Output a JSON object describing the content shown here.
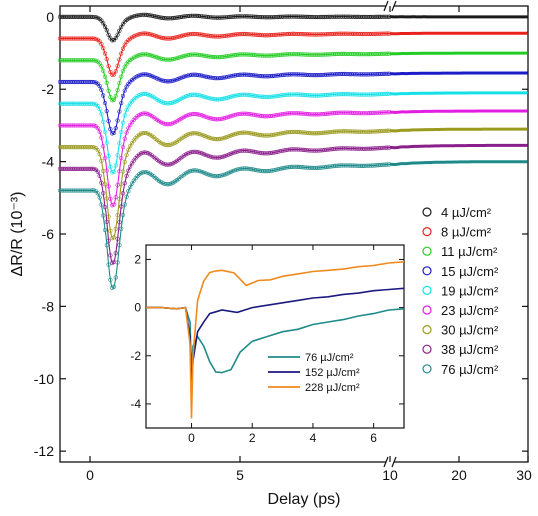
{
  "chart_data": [
    {
      "type": "line",
      "xlabel": "Delay (ps)",
      "ylabel": "ΔR/R (10⁻³)",
      "ylim": [
        -12.3,
        0.3
      ],
      "x_segments": [
        {
          "range": [
            -1,
            10
          ],
          "ticks": [
            0,
            5,
            10
          ],
          "scale": "linear"
        },
        {
          "range": [
            10,
            30
          ],
          "ticks": [
            20,
            30
          ],
          "scale": "linear"
        }
      ],
      "x_tick_labels": [
        "0",
        "5",
        "10",
        "20",
        "30"
      ],
      "y_ticks": [
        0,
        -2,
        -4,
        -6,
        -8,
        -10,
        -12
      ],
      "y_tick_labels": [
        "0",
        "-2",
        "-4",
        "-6",
        "-8",
        "-10",
        "-12"
      ],
      "axis_break": true,
      "legend_position": "right",
      "series": [
        {
          "name": "4 µJ/cm²",
          "fluence": 4,
          "color": "#1a1a1a",
          "offset": 0,
          "amp": 0.6,
          "end": 0.0
        },
        {
          "name": "8 µJ/cm²",
          "fluence": 8,
          "color": "#e8221b",
          "offset": -0.6,
          "amp": 0.95,
          "end": -0.45
        },
        {
          "name": "11 µJ/cm²",
          "fluence": 11,
          "color": "#22cc22",
          "offset": -1.2,
          "amp": 1.05,
          "end": -1.0
        },
        {
          "name": "15 µJ/cm²",
          "fluence": 15,
          "color": "#1c1cc8",
          "offset": -1.8,
          "amp": 1.35,
          "end": -1.55
        },
        {
          "name": "19 µJ/cm²",
          "fluence": 19,
          "color": "#14e0e6",
          "offset": -2.4,
          "amp": 1.8,
          "end": -2.1
        },
        {
          "name": "23 µJ/cm²",
          "fluence": 23,
          "color": "#e31ee3",
          "offset": -3.0,
          "amp": 2.1,
          "end": -2.6
        },
        {
          "name": "30 µJ/cm²",
          "fluence": 30,
          "color": "#9a9a1e",
          "offset": -3.6,
          "amp": 2.4,
          "end": -3.1
        },
        {
          "name": "38 µJ/cm²",
          "fluence": 38,
          "color": "#8a1e8a",
          "offset": -4.2,
          "amp": 2.5,
          "end": -3.55
        },
        {
          "name": "76 µJ/cm²",
          "fluence": 76,
          "color": "#1e8a8a",
          "offset": -4.8,
          "amp": 2.6,
          "end": -4.0
        }
      ]
    },
    {
      "type": "line",
      "inset": true,
      "xlim": [
        -1.5,
        7
      ],
      "ylim": [
        -5,
        2.6
      ],
      "x_ticks": [
        0,
        2,
        4,
        6
      ],
      "y_ticks": [
        2,
        0,
        -2,
        -4
      ],
      "series": [
        {
          "name": "76 µJ/cm²",
          "color": "#1e8a8a",
          "points": [
            [
              -1.5,
              0
            ],
            [
              -1,
              0
            ],
            [
              -0.5,
              -0.05
            ],
            [
              -0.2,
              0
            ],
            [
              -0.05,
              -0.6
            ],
            [
              0,
              -2.8
            ],
            [
              0.05,
              -1.6
            ],
            [
              0.2,
              -1.2
            ],
            [
              0.4,
              -1.6
            ],
            [
              0.6,
              -2.2
            ],
            [
              0.8,
              -2.6
            ],
            [
              1.0,
              -2.7
            ],
            [
              1.3,
              -2.5
            ],
            [
              1.6,
              -1.8
            ],
            [
              2.0,
              -1.4
            ],
            [
              2.5,
              -1.2
            ],
            [
              3.0,
              -1.0
            ],
            [
              3.5,
              -0.9
            ],
            [
              4.0,
              -0.7
            ],
            [
              4.5,
              -0.6
            ],
            [
              5.0,
              -0.5
            ],
            [
              5.5,
              -0.35
            ],
            [
              6.0,
              -0.25
            ],
            [
              6.5,
              -0.1
            ],
            [
              7.0,
              -0.05
            ]
          ]
        },
        {
          "name": "152 µJ/cm²",
          "color": "#1a1a80",
          "points": [
            [
              -1.5,
              0
            ],
            [
              -1,
              0
            ],
            [
              -0.5,
              -0.05
            ],
            [
              -0.2,
              0
            ],
            [
              -0.05,
              -1.2
            ],
            [
              0,
              -3.4
            ],
            [
              0.05,
              -2.2
            ],
            [
              0.2,
              -1.0
            ],
            [
              0.4,
              -0.6
            ],
            [
              0.6,
              -0.2
            ],
            [
              0.8,
              -0.1
            ],
            [
              1.0,
              -0.1
            ],
            [
              1.5,
              -0.2
            ],
            [
              2.0,
              0.0
            ],
            [
              2.5,
              0.1
            ],
            [
              3.0,
              0.2
            ],
            [
              3.5,
              0.3
            ],
            [
              4.0,
              0.4
            ],
            [
              4.5,
              0.45
            ],
            [
              5.0,
              0.55
            ],
            [
              5.5,
              0.6
            ],
            [
              6.0,
              0.7
            ],
            [
              6.5,
              0.75
            ],
            [
              7.0,
              0.8
            ]
          ]
        },
        {
          "name": "228 µJ/cm²",
          "color": "#f08a1e",
          "points": [
            [
              -1.5,
              0
            ],
            [
              -1,
              0
            ],
            [
              -0.5,
              -0.05
            ],
            [
              -0.2,
              0
            ],
            [
              -0.05,
              -1.5
            ],
            [
              0,
              -4.6
            ],
            [
              0.05,
              -2.0
            ],
            [
              0.2,
              0.3
            ],
            [
              0.4,
              1.1
            ],
            [
              0.6,
              1.5
            ],
            [
              0.8,
              1.6
            ],
            [
              1.0,
              1.55
            ],
            [
              1.4,
              1.4
            ],
            [
              1.8,
              1.0
            ],
            [
              2.2,
              1.05
            ],
            [
              2.6,
              1.2
            ],
            [
              3.0,
              1.3
            ],
            [
              3.5,
              1.4
            ],
            [
              4.0,
              1.5
            ],
            [
              4.5,
              1.55
            ],
            [
              5.0,
              1.6
            ],
            [
              5.5,
              1.7
            ],
            [
              6.0,
              1.75
            ],
            [
              6.5,
              1.85
            ],
            [
              7.0,
              1.9
            ]
          ]
        }
      ]
    }
  ]
}
